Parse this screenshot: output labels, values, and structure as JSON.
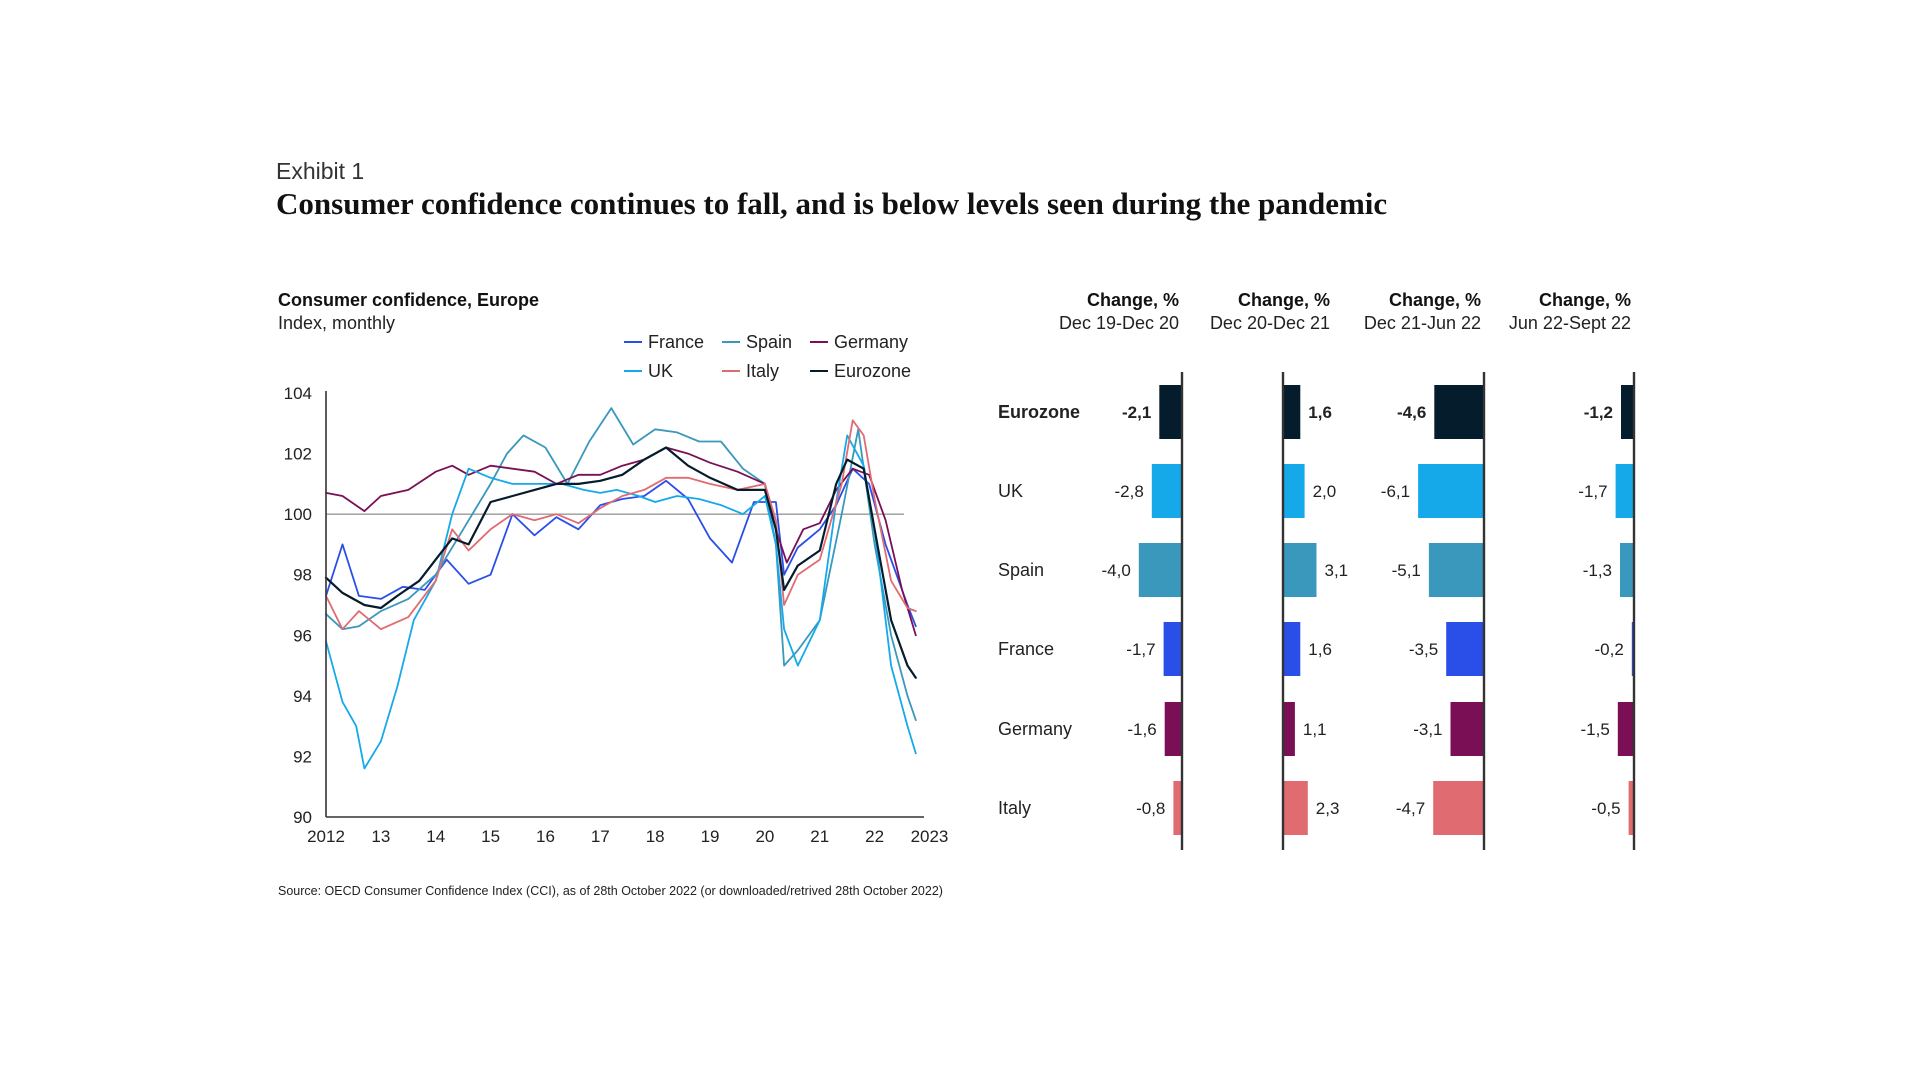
{
  "header": {
    "exhibit": "Exhibit 1",
    "title": "Consumer confidence continues to fall, and is below levels seen during the pandemic"
  },
  "colors": {
    "France": "#2a4fe8",
    "Spain": "#3a98bd",
    "Germany": "#7a0f56",
    "UK": "#16a9ea",
    "Italy": "#e06c72",
    "Eurozone": "#051c2c",
    "reference_line": "#9a9a9a",
    "axis": "#333333"
  },
  "chart_data": [
    {
      "type": "line",
      "title": "Consumer confidence, Europe",
      "subtitle": "Index, monthly",
      "reference_line": 100,
      "ylim": [
        90,
        104
      ],
      "xlim": [
        2012,
        2022.9
      ],
      "x_ticks": [
        2012,
        2013,
        2014,
        2015,
        2016,
        2017,
        2018,
        2019,
        2020,
        2021,
        2022,
        2023
      ],
      "x_tick_labels": [
        "2012",
        "13",
        "14",
        "15",
        "16",
        "17",
        "18",
        "19",
        "20",
        "21",
        "22",
        "2023"
      ],
      "y_ticks": [
        90,
        92,
        94,
        96,
        98,
        100,
        102,
        104
      ],
      "y_tick_labels": [
        "90",
        "92",
        "94",
        "96",
        "98",
        "100",
        "102",
        "104"
      ],
      "legend_placement": "top-right",
      "legend": [
        "France",
        "Spain",
        "Germany",
        "UK",
        "Italy",
        "Eurozone"
      ],
      "series": [
        {
          "name": "France",
          "x": [
            2012.0,
            2012.3,
            2012.6,
            2013.0,
            2013.4,
            2013.8,
            2014.2,
            2014.6,
            2015.0,
            2015.4,
            2015.8,
            2016.2,
            2016.6,
            2017.0,
            2017.4,
            2017.8,
            2018.2,
            2018.6,
            2019.0,
            2019.4,
            2019.8,
            2020.2,
            2020.35,
            2020.6,
            2021.0,
            2021.3,
            2021.6,
            2021.9,
            2022.2,
            2022.6,
            2022.75
          ],
          "values": [
            97.3,
            99.0,
            97.3,
            97.2,
            97.6,
            97.5,
            98.5,
            97.7,
            98.0,
            100.0,
            99.3,
            99.9,
            99.5,
            100.3,
            100.5,
            100.6,
            101.1,
            100.5,
            99.2,
            98.4,
            100.4,
            100.4,
            98.0,
            98.9,
            99.5,
            100.3,
            101.5,
            101.0,
            99.0,
            97.0,
            96.3
          ]
        },
        {
          "name": "Spain",
          "x": [
            2012.0,
            2012.3,
            2012.6,
            2013.0,
            2013.5,
            2014.0,
            2014.5,
            2015.0,
            2015.3,
            2015.6,
            2016.0,
            2016.4,
            2016.8,
            2017.2,
            2017.6,
            2018.0,
            2018.4,
            2018.8,
            2019.2,
            2019.6,
            2020.0,
            2020.2,
            2020.35,
            2020.6,
            2021.0,
            2021.4,
            2021.7,
            2022.0,
            2022.3,
            2022.6,
            2022.75
          ],
          "values": [
            96.7,
            96.2,
            96.3,
            96.8,
            97.2,
            98.0,
            99.5,
            101.0,
            102.0,
            102.6,
            102.2,
            101.0,
            102.4,
            103.5,
            102.3,
            102.8,
            102.7,
            102.4,
            102.4,
            101.5,
            101.0,
            99.0,
            95.0,
            95.5,
            96.5,
            100.0,
            102.8,
            99.0,
            96.0,
            94.0,
            93.2
          ]
        },
        {
          "name": "Germany",
          "x": [
            2012.0,
            2012.3,
            2012.7,
            2013.0,
            2013.5,
            2014.0,
            2014.3,
            2014.6,
            2015.0,
            2015.4,
            2015.8,
            2016.2,
            2016.6,
            2017.0,
            2017.4,
            2017.8,
            2018.2,
            2018.6,
            2019.0,
            2019.5,
            2020.0,
            2020.2,
            2020.4,
            2020.7,
            2021.0,
            2021.3,
            2021.6,
            2021.9,
            2022.2,
            2022.5,
            2022.75
          ],
          "values": [
            100.7,
            100.6,
            100.1,
            100.6,
            100.8,
            101.4,
            101.6,
            101.3,
            101.6,
            101.5,
            101.4,
            101.0,
            101.3,
            101.3,
            101.6,
            101.8,
            102.2,
            102.0,
            101.7,
            101.4,
            101.0,
            99.5,
            98.4,
            99.5,
            99.7,
            100.8,
            101.5,
            101.3,
            99.8,
            97.5,
            96.0
          ]
        },
        {
          "name": "UK",
          "x": [
            2012.0,
            2012.3,
            2012.55,
            2012.7,
            2013.0,
            2013.3,
            2013.6,
            2014.0,
            2014.3,
            2014.6,
            2015.0,
            2015.4,
            2015.8,
            2016.3,
            2016.7,
            2017.0,
            2017.3,
            2017.7,
            2018.0,
            2018.4,
            2018.8,
            2019.2,
            2019.6,
            2020.0,
            2020.2,
            2020.35,
            2020.6,
            2021.0,
            2021.3,
            2021.5,
            2021.8,
            2022.0,
            2022.3,
            2022.6,
            2022.75
          ],
          "values": [
            95.8,
            93.8,
            93.0,
            91.6,
            92.5,
            94.3,
            96.5,
            97.8,
            100.0,
            101.5,
            101.2,
            101.0,
            101.0,
            101.0,
            100.8,
            100.7,
            100.8,
            100.6,
            100.4,
            100.6,
            100.5,
            100.3,
            100.0,
            100.6,
            99.0,
            96.2,
            95.0,
            96.5,
            100.4,
            102.6,
            101.6,
            99.5,
            95.0,
            93.0,
            92.1
          ]
        },
        {
          "name": "Italy",
          "x": [
            2012.0,
            2012.3,
            2012.6,
            2013.0,
            2013.5,
            2014.0,
            2014.3,
            2014.6,
            2015.0,
            2015.4,
            2015.8,
            2016.2,
            2016.6,
            2017.0,
            2017.4,
            2017.8,
            2018.2,
            2018.6,
            2019.0,
            2019.5,
            2020.0,
            2020.2,
            2020.35,
            2020.6,
            2021.0,
            2021.4,
            2021.6,
            2021.8,
            2022.0,
            2022.3,
            2022.6,
            2022.75
          ],
          "values": [
            97.3,
            96.2,
            96.8,
            96.2,
            96.6,
            97.8,
            99.5,
            98.8,
            99.5,
            100.0,
            99.8,
            100.0,
            99.7,
            100.2,
            100.6,
            100.8,
            101.2,
            101.2,
            101.0,
            100.8,
            101.0,
            99.8,
            97.0,
            98.0,
            98.5,
            101.0,
            103.1,
            102.6,
            100.5,
            97.8,
            96.9,
            96.8
          ]
        },
        {
          "name": "Eurozone",
          "x": [
            2012.0,
            2012.3,
            2012.7,
            2013.0,
            2013.3,
            2013.7,
            2014.0,
            2014.3,
            2014.6,
            2015.0,
            2015.4,
            2015.8,
            2016.2,
            2016.6,
            2017.0,
            2017.4,
            2017.8,
            2018.2,
            2018.6,
            2019.0,
            2019.5,
            2020.0,
            2020.2,
            2020.35,
            2020.6,
            2021.0,
            2021.3,
            2021.5,
            2021.8,
            2022.0,
            2022.3,
            2022.6,
            2022.75
          ],
          "values": [
            97.9,
            97.4,
            97.0,
            96.9,
            97.3,
            97.8,
            98.5,
            99.2,
            99.0,
            100.4,
            100.6,
            100.8,
            101.0,
            101.0,
            101.1,
            101.3,
            101.8,
            102.2,
            101.6,
            101.2,
            100.8,
            100.8,
            99.5,
            97.5,
            98.3,
            98.8,
            101.0,
            101.8,
            101.5,
            99.5,
            96.5,
            95.0,
            94.6
          ]
        }
      ]
    },
    {
      "type": "bar",
      "orientation": "horizontal",
      "categories": [
        "Eurozone",
        "UK",
        "Spain",
        "France",
        "Germany",
        "Italy"
      ],
      "panels": [
        {
          "header": "Change, %",
          "period": "Dec 19-Dec 20",
          "values": [
            -2.1,
            -2.8,
            -4.0,
            -1.7,
            -1.6,
            -0.8
          ],
          "labels": [
            "-2,1",
            "-2,8",
            "-4,0",
            "-1,7",
            "-1,6",
            "-0,8"
          ]
        },
        {
          "header": "Change, %",
          "period": "Dec 20-Dec 21",
          "values": [
            1.6,
            2.0,
            3.1,
            1.6,
            1.1,
            2.3
          ],
          "labels": [
            "1,6",
            "2,0",
            "3,1",
            "1,6",
            "1,1",
            "2,3"
          ]
        },
        {
          "header": "Change, %",
          "period": "Dec 21-Jun 22",
          "values": [
            -4.6,
            -6.1,
            -5.1,
            -3.5,
            -3.1,
            -4.7
          ],
          "labels": [
            "-4,6",
            "-6,1",
            "-5,1",
            "-3,5",
            "-3,1",
            "-4,7"
          ]
        },
        {
          "header": "Change, %",
          "period": "Jun 22-Sept 22",
          "values": [
            -1.2,
            -1.7,
            -1.3,
            -0.2,
            -1.5,
            -0.5
          ],
          "labels": [
            "-1,2",
            "-1,7",
            "-1,3",
            "-0,2",
            "-1,5",
            "-0,5"
          ]
        }
      ]
    }
  ],
  "footer": {
    "source": "Source: OECD Consumer Confidence Index (CCI), as of 28th October 2022 (or downloaded/retrived 28th October 2022)"
  }
}
